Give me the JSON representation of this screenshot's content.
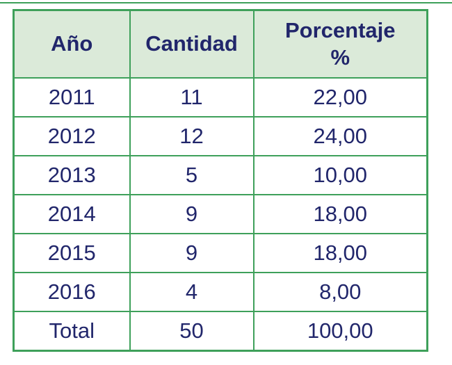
{
  "colors": {
    "border_green": "#3ea05a",
    "header_background_green": "#dbead9",
    "text_navy": "#21266b",
    "page_background": "#ffffff"
  },
  "table": {
    "columns": [
      {
        "label": "Año"
      },
      {
        "label": "Cantidad"
      },
      {
        "label": "Porcentaje",
        "sublabel": "%"
      }
    ],
    "rows": [
      {
        "year": "2011",
        "cantidad": "11",
        "porcentaje": "22,00"
      },
      {
        "year": "2012",
        "cantidad": "12",
        "porcentaje": "24,00"
      },
      {
        "year": "2013",
        "cantidad": "5",
        "porcentaje": "10,00"
      },
      {
        "year": "2014",
        "cantidad": "9",
        "porcentaje": "18,00"
      },
      {
        "year": "2015",
        "cantidad": "9",
        "porcentaje": "18,00"
      },
      {
        "year": "2016",
        "cantidad": "4",
        "porcentaje": "8,00"
      },
      {
        "year": "Total",
        "cantidad": "50",
        "porcentaje": "100,00"
      }
    ]
  }
}
